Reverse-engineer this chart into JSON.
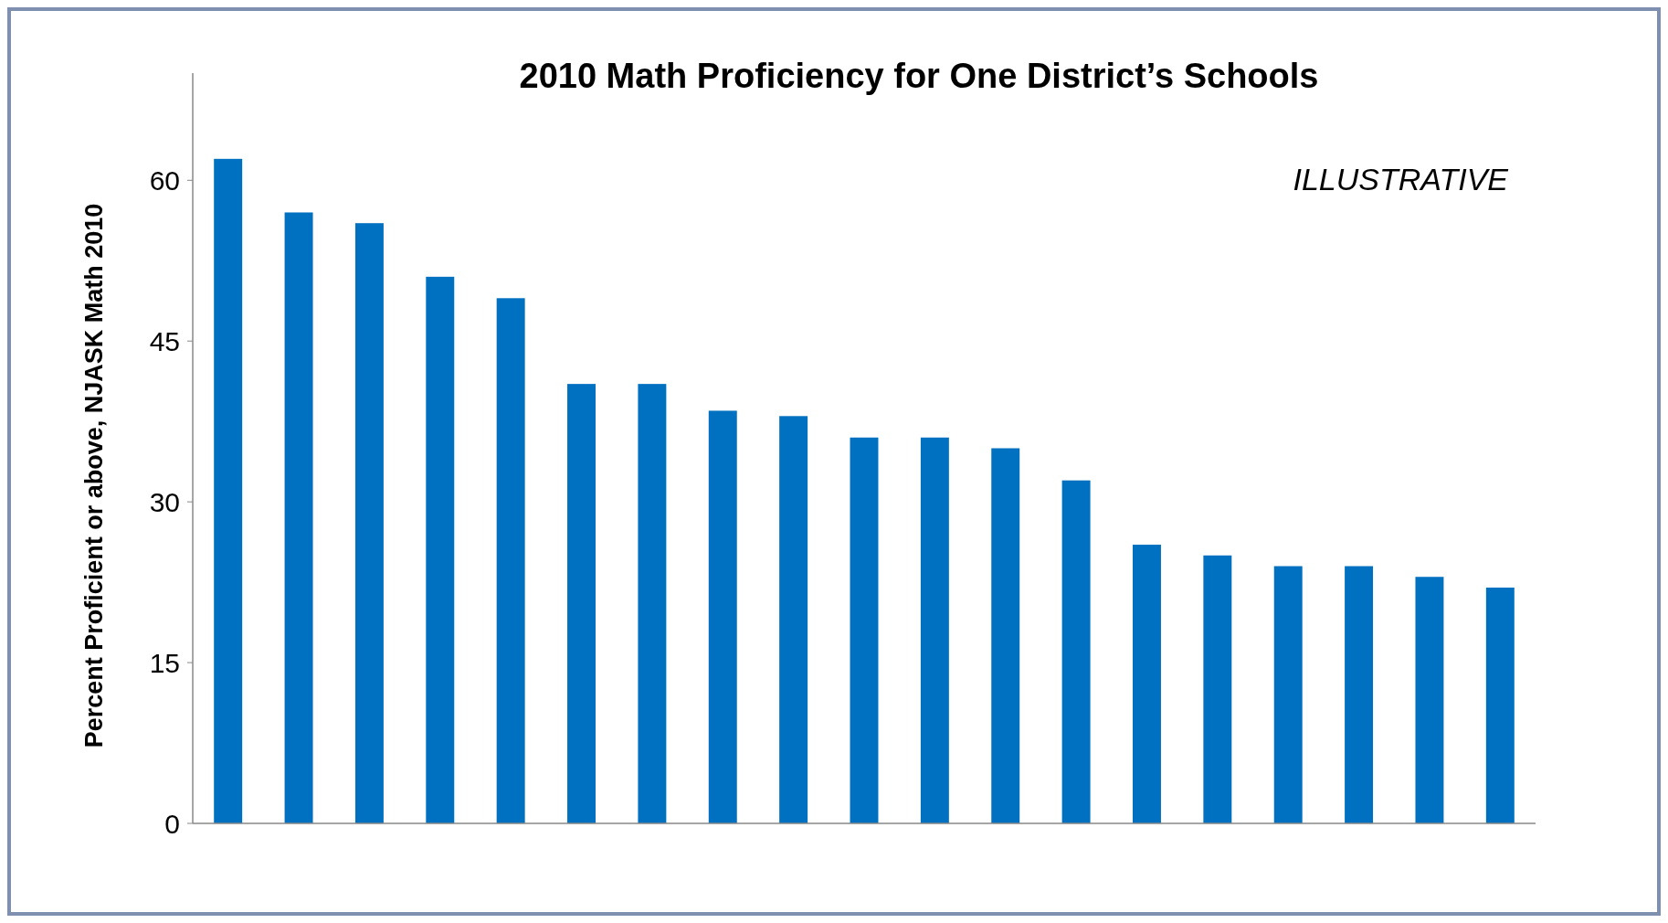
{
  "chart_data": {
    "type": "bar",
    "title": "2010 Math Proficiency for One District’s Schools",
    "ylabel": "Percent Proficient or above, NJASK Math 2010",
    "annotations": [
      "ILLUSTRATIVE"
    ],
    "categories": [
      null,
      null,
      null,
      null,
      null,
      null,
      null,
      null,
      null,
      null,
      null,
      null,
      null,
      null,
      null,
      null,
      null,
      null,
      null
    ],
    "values": [
      62,
      57,
      56,
      51,
      49,
      41,
      41,
      38.5,
      38,
      36,
      36,
      35,
      32,
      26,
      25,
      24,
      24,
      23,
      22
    ],
    "color": "#0070c0",
    "ylim": [
      0,
      70
    ],
    "yticks": [
      0,
      15,
      30,
      45,
      60
    ]
  }
}
